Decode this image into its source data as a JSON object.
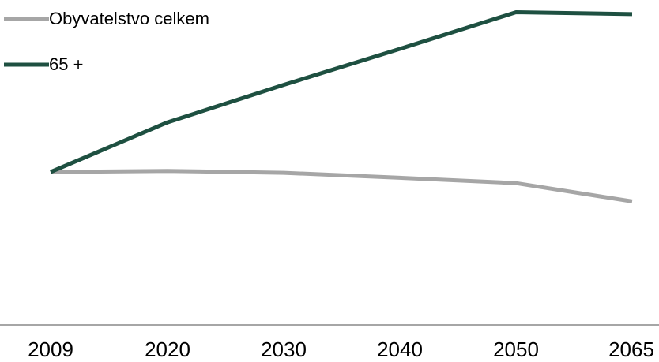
{
  "chart_data": {
    "type": "line",
    "x": [
      "2009",
      "2020",
      "2030",
      "2040",
      "2050",
      "2065"
    ],
    "series": [
      {
        "name": "Obyvatelstvo celkem",
        "color": "#a6a6a6",
        "values": [
          100,
          100.3,
          99.8,
          98.5,
          97.1,
          92.3
        ]
      },
      {
        "name": "65 +",
        "color": "#1e5041",
        "values": [
          100,
          113.0,
          122.8,
          132.2,
          141.8,
          141.3
        ]
      }
    ],
    "ylim": [
      60,
      145
    ],
    "grid": false,
    "legend_position": "top-left",
    "title": "",
    "xlabel": "",
    "ylabel": ""
  }
}
